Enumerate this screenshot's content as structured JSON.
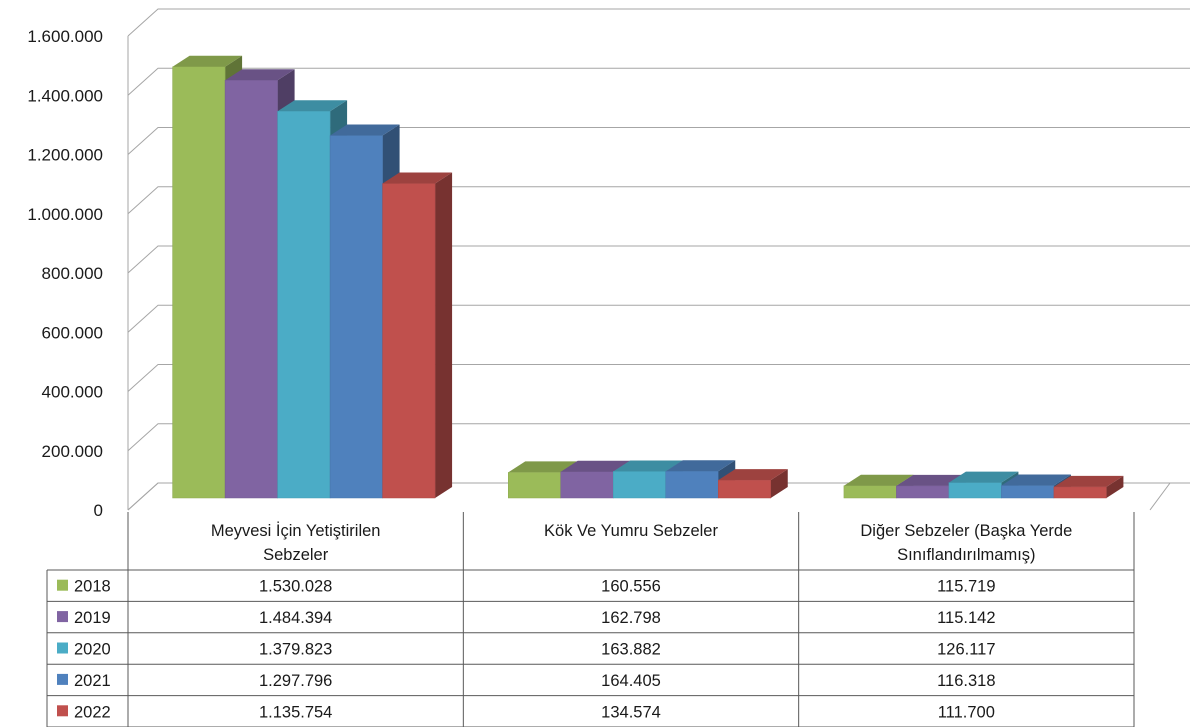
{
  "chart_data": {
    "type": "bar",
    "title": "",
    "xlabel": "",
    "ylabel": "",
    "ylim": [
      0,
      1600000
    ],
    "yticks": [
      0,
      200000,
      400000,
      600000,
      800000,
      1000000,
      1200000,
      1400000,
      1600000
    ],
    "ytick_labels": [
      "0",
      "200.000",
      "400.000",
      "600.000",
      "800.000",
      "1.000.000",
      "1.200.000",
      "1.400.000",
      "1.600.000"
    ],
    "grid": true,
    "style": "3d-clustered-column-with-data-table",
    "categories": [
      [
        "Meyvesi İçin Yetiştirilen",
        "Sebzeler"
      ],
      [
        "Kök Ve Yumru Sebzeler"
      ],
      [
        "Diğer Sebzeler (Başka Yerde",
        "Sınıflandırılmamış)"
      ]
    ],
    "series": [
      {
        "name": "2018",
        "color": "#9BBB59",
        "values": [
          1530028,
          160556,
          115719
        ],
        "labels": [
          "1.530.028",
          "160.556",
          "115.719"
        ]
      },
      {
        "name": "2019",
        "color": "#8064A2",
        "values": [
          1484394,
          162798,
          115142
        ],
        "labels": [
          "1.484.394",
          "162.798",
          "115.142"
        ]
      },
      {
        "name": "2020",
        "color": "#4BACC6",
        "values": [
          1379823,
          163882,
          126117
        ],
        "labels": [
          "1.379.823",
          "163.882",
          "126.117"
        ]
      },
      {
        "name": "2021",
        "color": "#4F81BD",
        "values": [
          1297796,
          164405,
          116318
        ],
        "labels": [
          "1.297.796",
          "164.405",
          "116.318"
        ]
      },
      {
        "name": "2022",
        "color": "#C0504D",
        "values": [
          1135754,
          134574,
          111700
        ],
        "labels": [
          "1.135.754",
          "134.574",
          "111.700"
        ]
      }
    ]
  }
}
